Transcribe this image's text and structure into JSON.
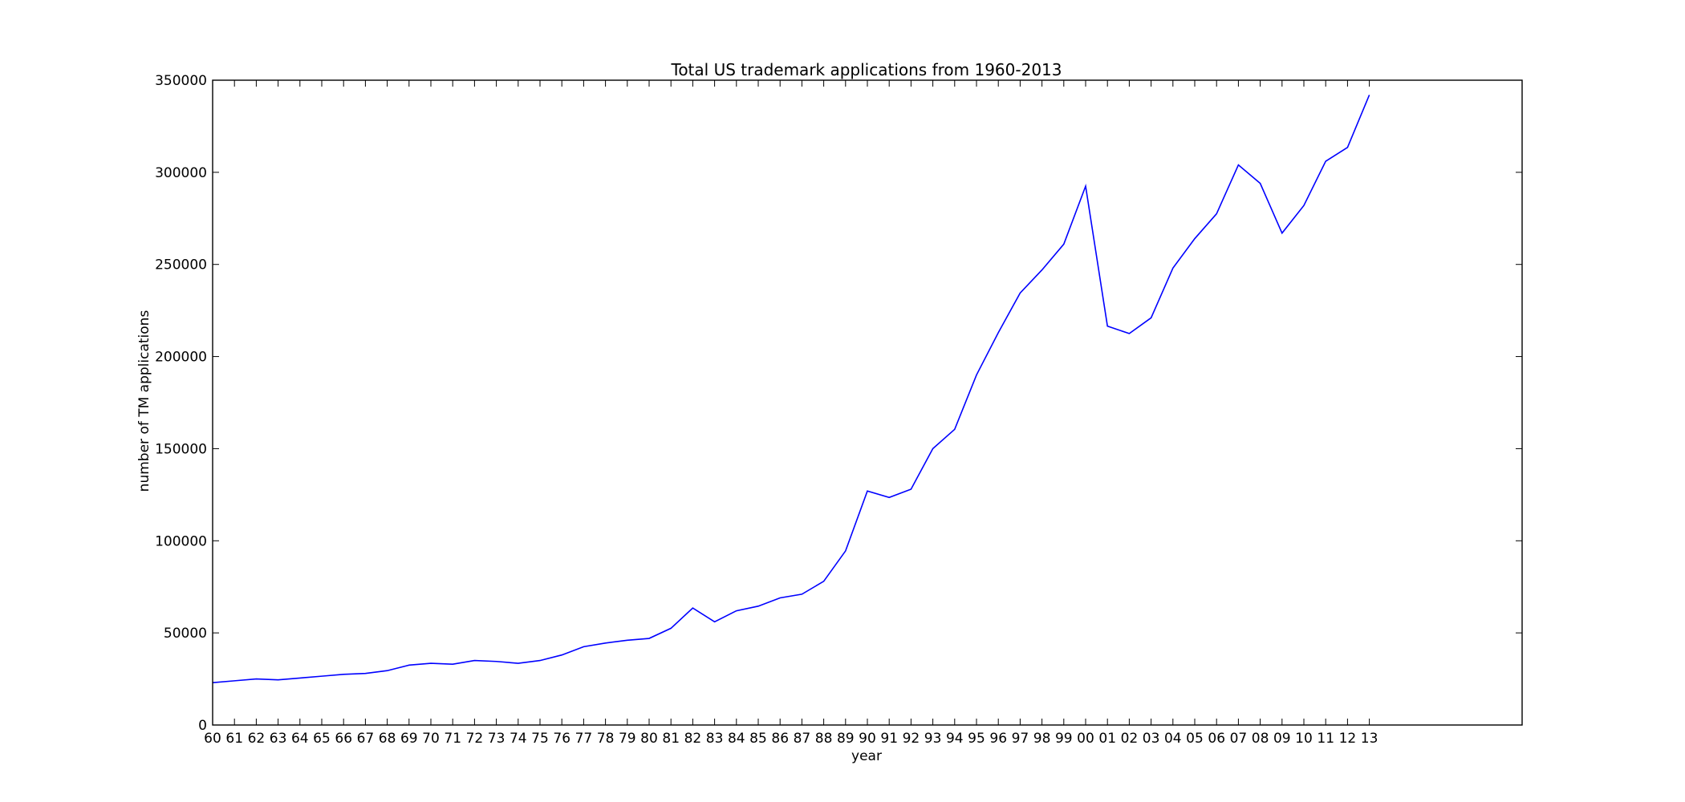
{
  "chart_data": {
    "type": "line",
    "title": "Total US trademark applications from 1960-2013",
    "xlabel": "year",
    "ylabel": "number of TM applications",
    "ylim": [
      0,
      350000
    ],
    "yticks": [
      0,
      50000,
      100000,
      150000,
      200000,
      250000,
      300000,
      350000
    ],
    "xlim": [
      1960,
      2020
    ],
    "grid": false,
    "line_color": "#0000ff",
    "x": [
      1960,
      1961,
      1962,
      1963,
      1964,
      1965,
      1966,
      1967,
      1968,
      1969,
      1970,
      1971,
      1972,
      1973,
      1974,
      1975,
      1976,
      1977,
      1978,
      1979,
      1980,
      1981,
      1982,
      1983,
      1984,
      1985,
      1986,
      1987,
      1988,
      1989,
      1990,
      1991,
      1992,
      1993,
      1994,
      1995,
      1996,
      1997,
      1998,
      1999,
      2000,
      2001,
      2002,
      2003,
      2004,
      2005,
      2006,
      2007,
      2008,
      2009,
      2010,
      2011,
      2012,
      2013
    ],
    "xtick_labels": [
      "60",
      "61",
      "62",
      "63",
      "64",
      "65",
      "66",
      "67",
      "68",
      "69",
      "70",
      "71",
      "72",
      "73",
      "74",
      "75",
      "76",
      "77",
      "78",
      "79",
      "80",
      "81",
      "82",
      "83",
      "84",
      "85",
      "86",
      "87",
      "88",
      "89",
      "90",
      "91",
      "92",
      "93",
      "94",
      "95",
      "96",
      "97",
      "98",
      "99",
      "00",
      "01",
      "02",
      "03",
      "04",
      "05",
      "06",
      "07",
      "08",
      "09",
      "10",
      "11",
      "12",
      "13"
    ],
    "series": [
      {
        "values": [
          23000,
          24000,
          25000,
          24500,
          25500,
          26500,
          27500,
          28000,
          29500,
          32500,
          33500,
          33000,
          35000,
          34500,
          33500,
          35000,
          38000,
          42500,
          44500,
          46000,
          47000,
          52500,
          63500,
          56000,
          62000,
          64500,
          69000,
          71000,
          78000,
          94500,
          127000,
          123500,
          128000,
          150000,
          160500,
          190000,
          213000,
          234500,
          247000,
          261000,
          292500,
          216500,
          212500,
          221000,
          248000,
          264000,
          277500,
          304000,
          294000,
          267000,
          282000,
          306000,
          313500,
          342000
        ]
      }
    ]
  }
}
